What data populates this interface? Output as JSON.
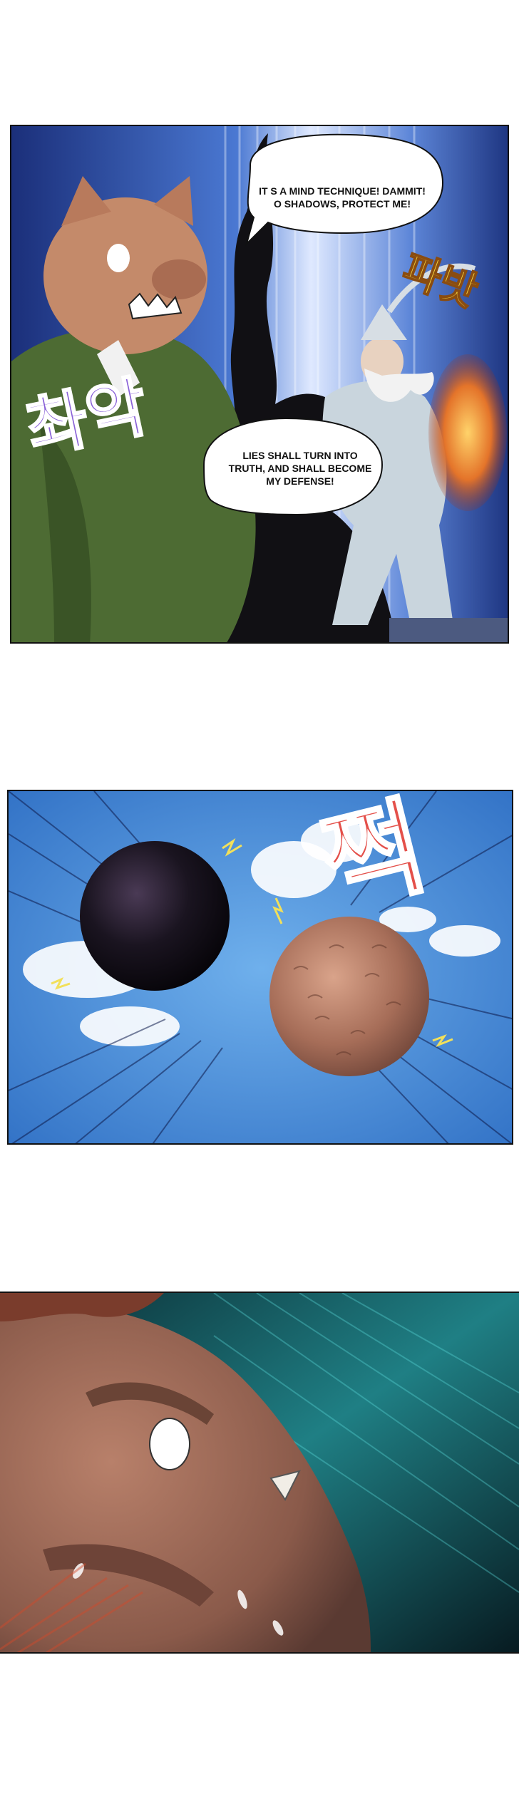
{
  "panels": [
    {
      "name": "pig-vs-sage",
      "bubbles": [
        "IT S A MIND TECHNIQUE! DAMMIT! O  SHADOWS, PROTECT ME!",
        "LIES SHALL TURN INTO TRUTH, AND SHALL BECOME MY DEFENSE!"
      ],
      "sfx": [
        "촤악",
        "파밧"
      ]
    },
    {
      "name": "orbs-collide",
      "sfx": [
        "쩍"
      ]
    },
    {
      "name": "pig-closeup"
    }
  ],
  "colors": {
    "sky_blue": "#3f86d6",
    "shadow_black": "#111014",
    "pig_skin": "#c48a6a",
    "robe_green": "#4d6b33",
    "flame_orange": "#e4742a",
    "sfx_purple": "#8a62d8",
    "sfx_red": "#e4504a",
    "teal_glow": "#1f7f84"
  }
}
